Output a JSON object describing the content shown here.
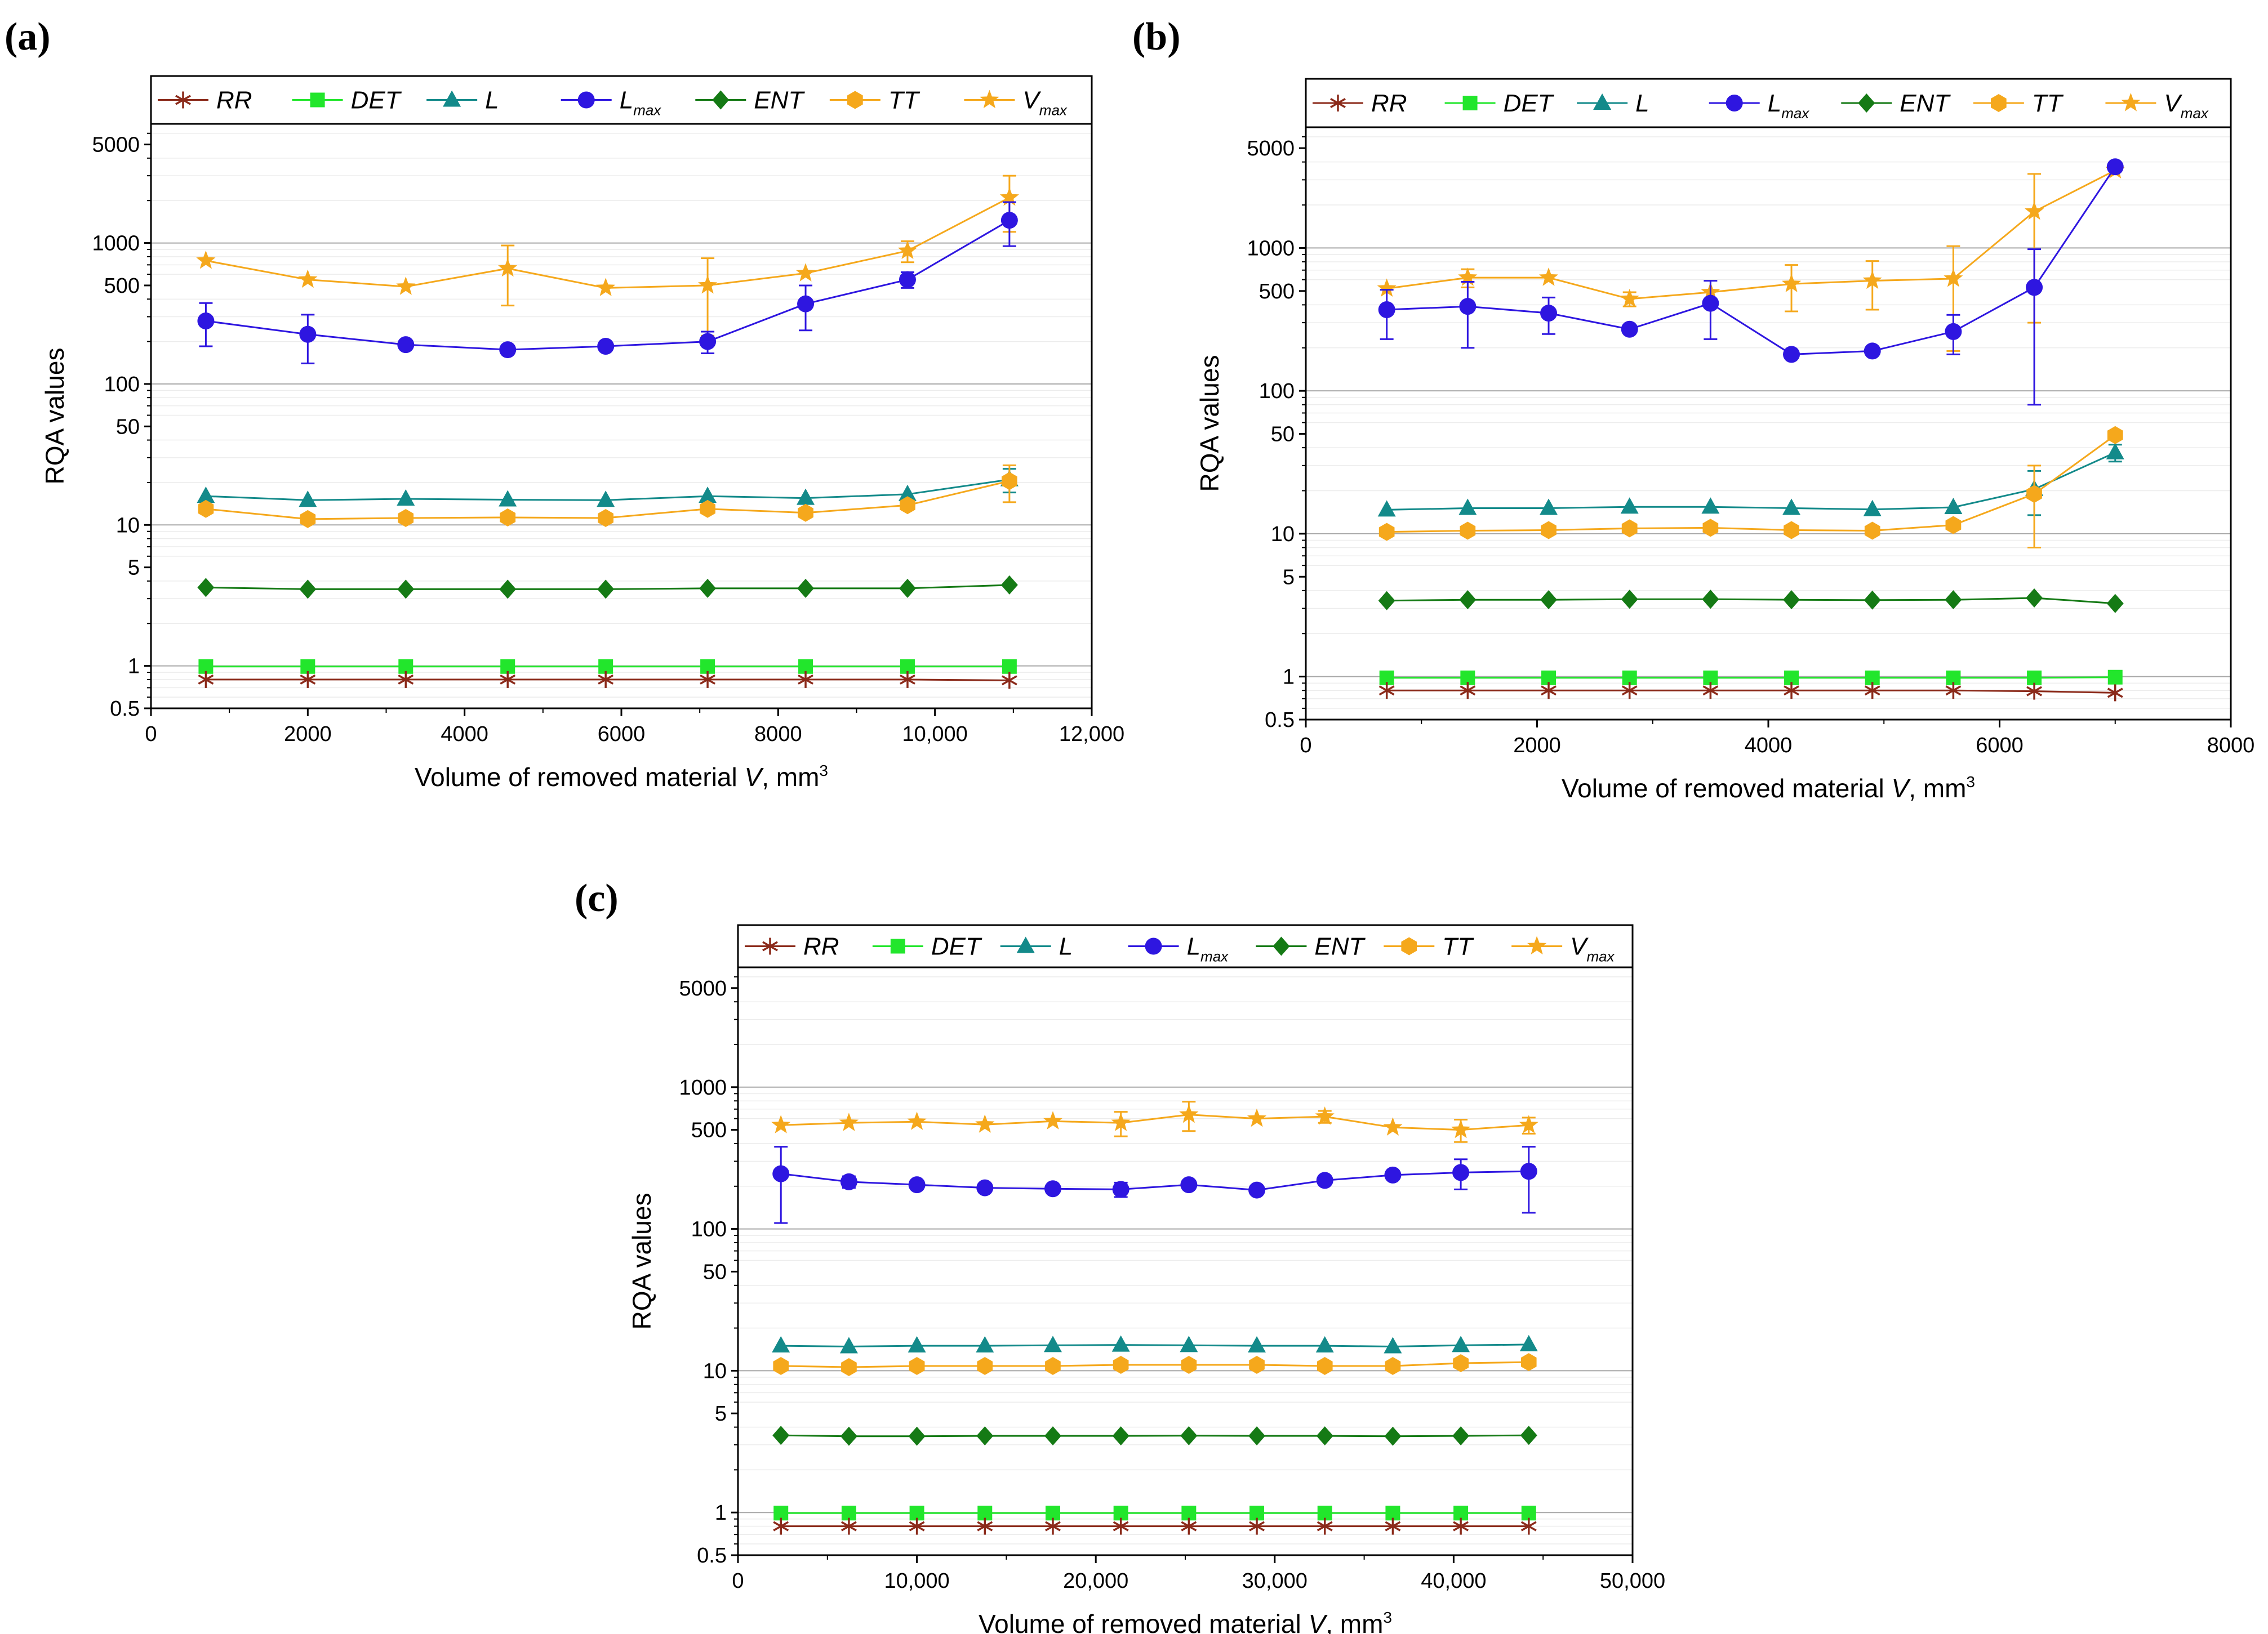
{
  "figure": {
    "panels": [
      "(a)",
      "(b)",
      "(c)"
    ]
  },
  "legend": {
    "items": [
      {
        "id": "RR",
        "name": "RR",
        "sub": "",
        "color": "#8B2A1A",
        "marker": "asterisk"
      },
      {
        "id": "DET",
        "name": "DET",
        "sub": "",
        "color": "#22E62C",
        "marker": "square"
      },
      {
        "id": "L",
        "name": "L",
        "sub": "",
        "color": "#138A8A",
        "marker": "triangle"
      },
      {
        "id": "Lmax",
        "name": "L",
        "sub": "max",
        "color": "#2E16E0",
        "marker": "circle"
      },
      {
        "id": "ENT",
        "name": "ENT",
        "sub": "",
        "color": "#157A15",
        "marker": "diamond"
      },
      {
        "id": "TT",
        "name": "TT",
        "sub": "",
        "color": "#F5A81C",
        "marker": "hexagon"
      },
      {
        "id": "Vmax",
        "name": "V",
        "sub": "max",
        "color": "#F5A81C",
        "marker": "star"
      }
    ]
  },
  "chart_data": [
    {
      "panel": "(a)",
      "type": "line",
      "xlabel": "Volume of removed material",
      "xlabel_var": "V",
      "xlabel_unit": ", mm",
      "xlabel_unit_exp": "3",
      "ylabel": "RQA values",
      "yscale": "log",
      "xlim": [
        0,
        12000
      ],
      "ylim": [
        0.5,
        7000
      ],
      "xticks": [
        0,
        2000,
        4000,
        6000,
        8000,
        10000,
        12000
      ],
      "xtick_labels": [
        "0",
        "2000",
        "4000",
        "6000",
        "8000",
        "10,000",
        "12,000"
      ],
      "yticks": [
        0.5,
        1,
        5,
        10,
        50,
        100,
        500,
        1000,
        5000
      ],
      "ytick_labels": [
        "0.5",
        "1",
        "5",
        "10",
        "50",
        "100",
        "500",
        "1000",
        "5000"
      ],
      "x": [
        700,
        2000,
        3250,
        4550,
        5800,
        7100,
        8350,
        9650,
        10950
      ],
      "series": [
        {
          "id": "Vmax",
          "values": [
            750,
            550,
            490,
            660,
            480,
            500,
            610,
            880,
            2100
          ],
          "errors": [
            0,
            0,
            0,
            300,
            0,
            280,
            0,
            150,
            900
          ]
        },
        {
          "id": "Lmax",
          "values": [
            280,
            225,
            190,
            175,
            185,
            200,
            370,
            550,
            1450
          ],
          "errors": [
            95,
            85,
            0,
            0,
            0,
            35,
            130,
            70,
            500
          ]
        },
        {
          "id": "L",
          "values": [
            16,
            15,
            15.3,
            15.1,
            15,
            16,
            15.5,
            16.5,
            21
          ],
          "errors": [
            0,
            0,
            0,
            0,
            0,
            0,
            0,
            0,
            4
          ]
        },
        {
          "id": "TT",
          "values": [
            13,
            11,
            11.2,
            11.3,
            11.2,
            13,
            12.2,
            13.8,
            20.5
          ],
          "errors": [
            0,
            0,
            0,
            0,
            0,
            0,
            0,
            0,
            6
          ]
        },
        {
          "id": "ENT",
          "values": [
            3.6,
            3.5,
            3.5,
            3.5,
            3.5,
            3.55,
            3.55,
            3.55,
            3.75
          ],
          "errors": [
            0,
            0,
            0,
            0,
            0,
            0,
            0,
            0,
            0
          ]
        },
        {
          "id": "DET",
          "values": [
            0.99,
            0.99,
            0.99,
            0.99,
            0.99,
            0.99,
            0.99,
            0.99,
            0.99
          ],
          "errors": [
            0,
            0,
            0,
            0,
            0,
            0,
            0,
            0,
            0
          ]
        },
        {
          "id": "RR",
          "values": [
            0.8,
            0.8,
            0.8,
            0.8,
            0.8,
            0.8,
            0.8,
            0.8,
            0.79
          ],
          "errors": [
            0,
            0,
            0,
            0,
            0,
            0,
            0,
            0,
            0
          ]
        }
      ]
    },
    {
      "panel": "(b)",
      "type": "line",
      "xlabel": "Volume of removed material",
      "xlabel_var": "V",
      "xlabel_unit": ", mm",
      "xlabel_unit_exp": "3",
      "ylabel": "RQA values",
      "yscale": "log",
      "xlim": [
        0,
        8000
      ],
      "ylim": [
        0.5,
        7000
      ],
      "xticks": [
        0,
        2000,
        4000,
        6000,
        8000
      ],
      "xtick_labels": [
        "0",
        "2000",
        "4000",
        "6000",
        "8000"
      ],
      "yticks": [
        0.5,
        1,
        5,
        10,
        50,
        100,
        500,
        1000,
        5000
      ],
      "ytick_labels": [
        "0.5",
        "1",
        "5",
        "10",
        "50",
        "100",
        "500",
        "1000",
        "5000"
      ],
      "x": [
        700,
        1400,
        2100,
        2800,
        3500,
        4200,
        4900,
        5600,
        6300,
        7000
      ],
      "series": [
        {
          "id": "Vmax",
          "values": [
            520,
            620,
            620,
            440,
            490,
            560,
            590,
            610,
            1800,
            3500
          ],
          "errors": [
            0,
            90,
            0,
            50,
            0,
            200,
            220,
            420,
            1500,
            0
          ]
        },
        {
          "id": "Lmax",
          "values": [
            370,
            390,
            350,
            270,
            410,
            180,
            190,
            260,
            530,
            3700
          ],
          "errors": [
            140,
            190,
            100,
            0,
            180,
            0,
            0,
            80,
            450,
            0
          ]
        },
        {
          "id": "L",
          "values": [
            14.7,
            15.1,
            15.1,
            15.4,
            15.4,
            15.1,
            14.8,
            15.3,
            20.5,
            37
          ],
          "errors": [
            0,
            0,
            0,
            0,
            0,
            0,
            0,
            0,
            7,
            5
          ]
        },
        {
          "id": "TT",
          "values": [
            10.3,
            10.5,
            10.6,
            10.9,
            11,
            10.6,
            10.5,
            11.5,
            19,
            49
          ],
          "errors": [
            0,
            0,
            0,
            0,
            0,
            0,
            0,
            0,
            11,
            0
          ]
        },
        {
          "id": "ENT",
          "values": [
            3.4,
            3.45,
            3.45,
            3.48,
            3.48,
            3.45,
            3.43,
            3.45,
            3.55,
            3.25
          ],
          "errors": [
            0,
            0,
            0,
            0,
            0,
            0,
            0,
            0,
            0,
            0
          ]
        },
        {
          "id": "DET",
          "values": [
            0.98,
            0.98,
            0.98,
            0.98,
            0.98,
            0.98,
            0.98,
            0.98,
            0.98,
            0.99
          ],
          "errors": [
            0,
            0,
            0,
            0,
            0,
            0,
            0,
            0,
            0,
            0
          ]
        },
        {
          "id": "RR",
          "values": [
            0.8,
            0.8,
            0.8,
            0.8,
            0.8,
            0.8,
            0.8,
            0.8,
            0.79,
            0.77
          ],
          "errors": [
            0,
            0,
            0,
            0,
            0,
            0,
            0,
            0,
            0,
            0
          ]
        }
      ]
    },
    {
      "panel": "(c)",
      "type": "line",
      "xlabel": "Volume of removed material",
      "xlabel_var": "V",
      "xlabel_unit": ", mm",
      "xlabel_unit_exp": "3",
      "ylabel": "RQA values",
      "yscale": "log",
      "xlim": [
        0,
        50000
      ],
      "ylim": [
        0.5,
        7000
      ],
      "xticks": [
        0,
        10000,
        20000,
        30000,
        40000,
        50000
      ],
      "xtick_labels": [
        "0",
        "10,000",
        "20,000",
        "30,000",
        "40,000",
        "50,000"
      ],
      "yticks": [
        0.5,
        1,
        5,
        10,
        50,
        100,
        500,
        1000,
        5000
      ],
      "ytick_labels": [
        "0.5",
        "1",
        "5",
        "10",
        "50",
        "100",
        "500",
        "1000",
        "5000"
      ],
      "x": [
        2400,
        6200,
        10000,
        13800,
        17600,
        21400,
        25200,
        29000,
        32800,
        36600,
        40400,
        44200
      ],
      "series": [
        {
          "id": "Vmax",
          "values": [
            540,
            560,
            570,
            545,
            575,
            560,
            640,
            600,
            620,
            520,
            500,
            540
          ],
          "errors": [
            0,
            0,
            0,
            0,
            0,
            110,
            150,
            0,
            60,
            0,
            90,
            70
          ]
        },
        {
          "id": "Lmax",
          "values": [
            245,
            215,
            205,
            195,
            192,
            190,
            205,
            188,
            220,
            240,
            250,
            255
          ],
          "errors": [
            135,
            20,
            0,
            0,
            0,
            22,
            0,
            0,
            0,
            0,
            60,
            125
          ]
        },
        {
          "id": "L",
          "values": [
            15,
            14.8,
            15,
            15,
            15.1,
            15.2,
            15.1,
            15,
            15,
            14.8,
            15.1,
            15.3
          ],
          "errors": [
            0,
            0,
            0,
            0,
            0,
            0,
            0,
            0,
            0,
            0,
            0,
            0
          ]
        },
        {
          "id": "TT",
          "values": [
            10.8,
            10.6,
            10.8,
            10.8,
            10.8,
            11,
            11,
            11,
            10.8,
            10.8,
            11.3,
            11.5
          ],
          "errors": [
            0,
            0,
            0,
            0,
            0,
            0,
            0,
            0,
            0,
            0,
            0,
            0
          ]
        },
        {
          "id": "ENT",
          "values": [
            3.5,
            3.45,
            3.45,
            3.47,
            3.47,
            3.47,
            3.48,
            3.47,
            3.47,
            3.45,
            3.47,
            3.5
          ],
          "errors": [
            0,
            0,
            0,
            0,
            0,
            0,
            0,
            0,
            0,
            0,
            0,
            0
          ]
        },
        {
          "id": "DET",
          "values": [
            0.99,
            0.99,
            0.99,
            0.99,
            0.99,
            0.99,
            0.99,
            0.99,
            0.99,
            0.99,
            0.99,
            0.99
          ],
          "errors": [
            0,
            0,
            0,
            0,
            0,
            0,
            0,
            0,
            0,
            0,
            0,
            0
          ]
        },
        {
          "id": "RR",
          "values": [
            0.8,
            0.8,
            0.8,
            0.8,
            0.8,
            0.8,
            0.8,
            0.8,
            0.8,
            0.8,
            0.8,
            0.8
          ],
          "errors": [
            0,
            0,
            0,
            0,
            0,
            0,
            0,
            0,
            0,
            0,
            0,
            0
          ]
        }
      ]
    }
  ]
}
